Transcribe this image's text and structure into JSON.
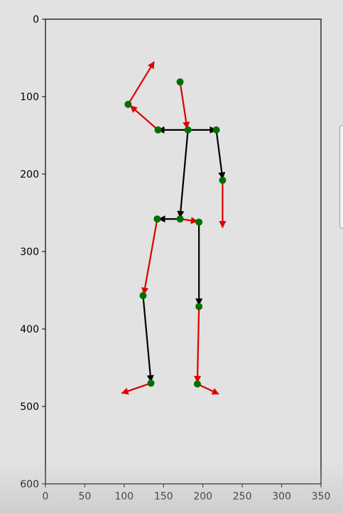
{
  "chart_data": {
    "type": "scatter",
    "title": "",
    "xlabel": "",
    "ylabel": "",
    "xlim": [
      0,
      350
    ],
    "ylim": [
      600,
      0
    ],
    "y_inverted": true,
    "grid": false,
    "x_ticks": [
      "0",
      "50",
      "100",
      "150",
      "200",
      "250",
      "300",
      "350"
    ],
    "y_ticks": [
      "0",
      "100",
      "200",
      "300",
      "400",
      "500",
      "600"
    ],
    "x_tick_values": [
      0,
      50,
      100,
      150,
      200,
      250,
      300,
      350
    ],
    "y_tick_values": [
      0,
      100,
      200,
      300,
      400,
      500,
      600
    ],
    "points": [
      {
        "id": "head",
        "x": 171,
        "y": 81
      },
      {
        "id": "neck",
        "x": 181,
        "y": 143
      },
      {
        "id": "shoulder-left",
        "x": 143,
        "y": 143
      },
      {
        "id": "elbow-left",
        "x": 105,
        "y": 110
      },
      {
        "id": "shoulder-right",
        "x": 217,
        "y": 143
      },
      {
        "id": "elbow-right",
        "x": 225,
        "y": 208
      },
      {
        "id": "hip-center",
        "x": 171,
        "y": 258
      },
      {
        "id": "hip-left",
        "x": 142,
        "y": 258
      },
      {
        "id": "hip-right",
        "x": 195,
        "y": 262
      },
      {
        "id": "knee-left",
        "x": 124,
        "y": 357
      },
      {
        "id": "knee-right",
        "x": 195,
        "y": 371
      },
      {
        "id": "ankle-left",
        "x": 134,
        "y": 470
      },
      {
        "id": "ankle-right",
        "x": 193,
        "y": 471
      }
    ],
    "arrows": [
      {
        "from": [
          181,
          143
        ],
        "to": [
          143,
          143
        ],
        "color": "#000000"
      },
      {
        "from": [
          181,
          143
        ],
        "to": [
          217,
          143
        ],
        "color": "#000000"
      },
      {
        "from": [
          217,
          143
        ],
        "to": [
          225,
          206
        ],
        "color": "#000000"
      },
      {
        "from": [
          181,
          143
        ],
        "to": [
          171,
          256
        ],
        "color": "#000000"
      },
      {
        "from": [
          171,
          258
        ],
        "to": [
          144,
          258
        ],
        "color": "#000000"
      },
      {
        "from": [
          195,
          262
        ],
        "to": [
          195,
          369
        ],
        "color": "#000000"
      },
      {
        "from": [
          124,
          357
        ],
        "to": [
          134,
          468
        ],
        "color": "#000000"
      },
      {
        "from": [
          171,
          81
        ],
        "to": [
          180,
          141
        ],
        "color": "#dd0000"
      },
      {
        "from": [
          143,
          143
        ],
        "to": [
          108,
          112
        ],
        "color": "#dd0000"
      },
      {
        "from": [
          105,
          110
        ],
        "to": [
          138,
          55
        ],
        "color": "#dd0000"
      },
      {
        "from": [
          225,
          208
        ],
        "to": [
          225,
          269
        ],
        "color": "#dd0000"
      },
      {
        "from": [
          171,
          258
        ],
        "to": [
          193,
          261
        ],
        "color": "#dd0000"
      },
      {
        "from": [
          142,
          258
        ],
        "to": [
          125,
          355
        ],
        "color": "#dd0000"
      },
      {
        "from": [
          195,
          371
        ],
        "to": [
          193,
          469
        ],
        "color": "#dd0000"
      },
      {
        "from": [
          134,
          470
        ],
        "to": [
          97,
          483
        ],
        "color": "#dd0000"
      },
      {
        "from": [
          193,
          471
        ],
        "to": [
          220,
          484
        ],
        "color": "#dd0000"
      }
    ],
    "colors": {
      "plot_background": "#e2e2e2",
      "joint": "#007000",
      "structure_arrow": "#000000",
      "direction_arrow": "#dd0000"
    }
  }
}
